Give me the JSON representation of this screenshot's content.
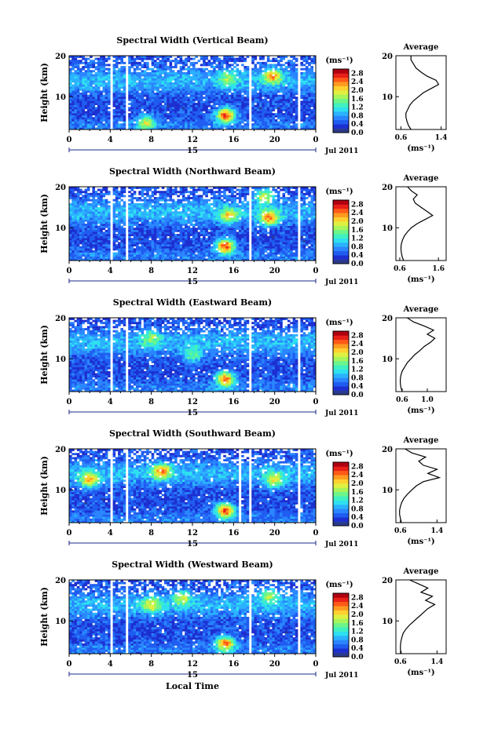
{
  "figure": {
    "xlabel": "Local Time",
    "date_label": "Jul 2011",
    "day_label": "15",
    "ylabel": "Height (km)",
    "cbar_unit": "(ms⁻¹)",
    "avg_title": "Average",
    "avg_xlabel": "(ms⁻¹)"
  },
  "chart_data": [
    {
      "type": "heatmap",
      "title": "Spectral Width (Vertical Beam)",
      "x_ticks": [
        "0",
        "4",
        "8",
        "12",
        "16",
        "20",
        "0"
      ],
      "xlim": [
        0,
        24
      ],
      "y_ticks": [
        "10",
        "20"
      ],
      "ylim": [
        2,
        20
      ],
      "colorbar": {
        "ticks": [
          "0.0",
          "0.4",
          "0.8",
          "1.2",
          "1.6",
          "2.0",
          "2.4",
          "2.8"
        ],
        "range": [
          0,
          3.0
        ]
      },
      "data_gaps_hours": [
        [
          3.9,
          4.3
        ],
        [
          5.5,
          5.8
        ],
        [
          17.5,
          17.8
        ],
        [
          22.3,
          22.6
        ]
      ],
      "features": [
        {
          "x": 15.2,
          "y": 5.5,
          "value": 2.8
        },
        {
          "x": 19.8,
          "y": 15.0,
          "value": 2.4
        },
        {
          "x": 15.5,
          "y": 14.5,
          "value": 1.8
        },
        {
          "x": 7.5,
          "y": 3.5,
          "value": 2.0
        }
      ],
      "average": {
        "xlabel_ticks": [
          "0.6",
          "1.4"
        ],
        "xlim": [
          0.5,
          1.5
        ],
        "ylim": [
          2,
          20
        ],
        "x": [
          0.8,
          0.75,
          0.72,
          0.7,
          0.7,
          0.74,
          0.78,
          0.85,
          0.95,
          1.05,
          1.2,
          1.35,
          1.3,
          1.12,
          1.0,
          0.9,
          0.85,
          0.8,
          0.8
        ],
        "y": [
          2,
          3,
          4,
          5,
          6,
          7,
          8,
          9,
          10,
          11,
          12,
          13,
          14,
          15,
          16,
          17,
          18,
          19,
          20
        ]
      }
    },
    {
      "type": "heatmap",
      "title": "Spectral Width (Northward Beam)",
      "x_ticks": [
        "0",
        "4",
        "8",
        "12",
        "16",
        "20",
        "0"
      ],
      "xlim": [
        0,
        24
      ],
      "y_ticks": [
        "10",
        "20"
      ],
      "ylim": [
        2,
        20
      ],
      "colorbar": {
        "ticks": [
          "0.0",
          "0.4",
          "0.8",
          "1.2",
          "1.6",
          "2.0",
          "2.4",
          "2.8"
        ],
        "range": [
          0,
          3.0
        ]
      },
      "data_gaps_hours": [
        [
          3.9,
          4.3
        ],
        [
          5.5,
          5.8
        ],
        [
          17.5,
          17.8
        ],
        [
          22.3,
          22.6
        ]
      ],
      "features": [
        {
          "x": 15.2,
          "y": 5.5,
          "value": 2.8
        },
        {
          "x": 19.5,
          "y": 12.5,
          "value": 2.6
        },
        {
          "x": 15.5,
          "y": 13.0,
          "value": 2.2
        },
        {
          "x": 19.0,
          "y": 17.5,
          "value": 2.0
        }
      ],
      "average": {
        "xlabel_ticks": [
          "0.6",
          "1.6"
        ],
        "xlim": [
          0.5,
          1.8
        ],
        "ylim": [
          2,
          20
        ],
        "x": [
          0.7,
          0.66,
          0.64,
          0.63,
          0.64,
          0.67,
          0.72,
          0.8,
          0.9,
          1.05,
          1.25,
          1.45,
          1.3,
          1.15,
          1.0,
          0.95,
          1.05,
          0.9,
          0.8
        ],
        "y": [
          2,
          3,
          4,
          5,
          6,
          7,
          8,
          9,
          10,
          11,
          12,
          13,
          14,
          15,
          16,
          17,
          18,
          19,
          20
        ]
      }
    },
    {
      "type": "heatmap",
      "title": "Spectral Width (Eastward Beam)",
      "x_ticks": [
        "0",
        "4",
        "8",
        "12",
        "16",
        "20",
        "0"
      ],
      "xlim": [
        0,
        24
      ],
      "y_ticks": [
        "10",
        "20"
      ],
      "ylim": [
        2,
        20
      ],
      "colorbar": {
        "ticks": [
          "0.0",
          "0.4",
          "0.8",
          "1.2",
          "1.6",
          "2.0",
          "2.4",
          "2.8"
        ],
        "range": [
          0,
          3.0
        ]
      },
      "data_gaps_hours": [
        [
          3.9,
          4.3
        ],
        [
          5.5,
          5.8
        ],
        [
          17.5,
          17.8
        ],
        [
          22.3,
          22.6
        ]
      ],
      "features": [
        {
          "x": 15.2,
          "y": 5.0,
          "value": 2.6
        },
        {
          "x": 8.0,
          "y": 15.0,
          "value": 1.8
        },
        {
          "x": 12.0,
          "y": 11.0,
          "value": 1.6
        }
      ],
      "average": {
        "xlabel_ticks": [
          "0.6",
          "1.0"
        ],
        "xlim": [
          0.5,
          1.3
        ],
        "ylim": [
          2,
          20
        ],
        "x": [
          0.6,
          0.58,
          0.57,
          0.57,
          0.58,
          0.6,
          0.64,
          0.68,
          0.74,
          0.8,
          0.88,
          0.95,
          1.05,
          1.12,
          1.0,
          1.1,
          0.95,
          0.78,
          0.68
        ],
        "y": [
          2,
          3,
          4,
          5,
          6,
          7,
          8,
          9,
          10,
          11,
          12,
          13,
          14,
          15,
          16,
          17,
          18,
          19,
          20
        ]
      }
    },
    {
      "type": "heatmap",
      "title": "Spectral Width (Southward Beam)",
      "x_ticks": [
        "0",
        "4",
        "8",
        "12",
        "16",
        "20",
        "0"
      ],
      "xlim": [
        0,
        24
      ],
      "y_ticks": [
        "10",
        "20"
      ],
      "ylim": [
        2,
        20
      ],
      "colorbar": {
        "ticks": [
          "0.0",
          "0.4",
          "0.8",
          "1.2",
          "1.6",
          "2.0",
          "2.4",
          "2.8"
        ],
        "range": [
          0,
          3.0
        ]
      },
      "data_gaps_hours": [
        [
          3.9,
          4.3
        ],
        [
          5.5,
          5.8
        ],
        [
          16.5,
          16.7
        ],
        [
          17.5,
          17.8
        ],
        [
          22.3,
          22.6
        ]
      ],
      "features": [
        {
          "x": 15.2,
          "y": 5.0,
          "value": 2.8
        },
        {
          "x": 9.0,
          "y": 14.5,
          "value": 2.6
        },
        {
          "x": 2.0,
          "y": 12.5,
          "value": 2.4
        },
        {
          "x": 20.0,
          "y": 12.5,
          "value": 2.2
        }
      ],
      "average": {
        "xlabel_ticks": [
          "0.6",
          "1.4"
        ],
        "xlim": [
          0.5,
          1.6
        ],
        "ylim": [
          2,
          20
        ],
        "x": [
          0.62,
          0.6,
          0.58,
          0.58,
          0.6,
          0.63,
          0.68,
          0.76,
          0.85,
          0.95,
          1.1,
          1.45,
          1.2,
          1.4,
          1.1,
          1.0,
          1.15,
          0.85,
          0.7
        ],
        "y": [
          2,
          3,
          4,
          5,
          6,
          7,
          8,
          9,
          10,
          11,
          12,
          13,
          14,
          15,
          16,
          17,
          18,
          19,
          20
        ]
      }
    },
    {
      "type": "heatmap",
      "title": "Spectral Width (Westward Beam)",
      "x_ticks": [
        "0",
        "4",
        "8",
        "12",
        "16",
        "20",
        "0"
      ],
      "xlim": [
        0,
        24
      ],
      "y_ticks": [
        "10",
        "20"
      ],
      "ylim": [
        2,
        20
      ],
      "colorbar": {
        "ticks": [
          "0.0",
          "0.4",
          "0.8",
          "1.2",
          "1.6",
          "2.0",
          "2.4",
          "2.8"
        ],
        "range": [
          0,
          3.0
        ]
      },
      "data_gaps_hours": [
        [
          3.9,
          4.3
        ],
        [
          5.5,
          5.8
        ],
        [
          17.5,
          17.8
        ],
        [
          22.3,
          22.6
        ]
      ],
      "features": [
        {
          "x": 15.2,
          "y": 4.5,
          "value": 2.6
        },
        {
          "x": 8.0,
          "y": 14.0,
          "value": 2.2
        },
        {
          "x": 11.0,
          "y": 15.5,
          "value": 2.0
        },
        {
          "x": 19.5,
          "y": 16.0,
          "value": 1.8
        }
      ],
      "average": {
        "xlabel_ticks": [
          "0.6",
          "1.4"
        ],
        "xlim": [
          0.5,
          1.6
        ],
        "ylim": [
          2,
          20
        ],
        "x": [
          0.62,
          0.6,
          0.6,
          0.61,
          0.63,
          0.66,
          0.72,
          0.8,
          0.9,
          1.0,
          1.1,
          1.2,
          1.35,
          1.15,
          1.3,
          1.05,
          1.2,
          1.0,
          0.8
        ],
        "y": [
          2,
          3,
          4,
          5,
          6,
          7,
          8,
          9,
          10,
          11,
          12,
          13,
          14,
          15,
          16,
          17,
          18,
          19,
          20
        ]
      }
    }
  ]
}
